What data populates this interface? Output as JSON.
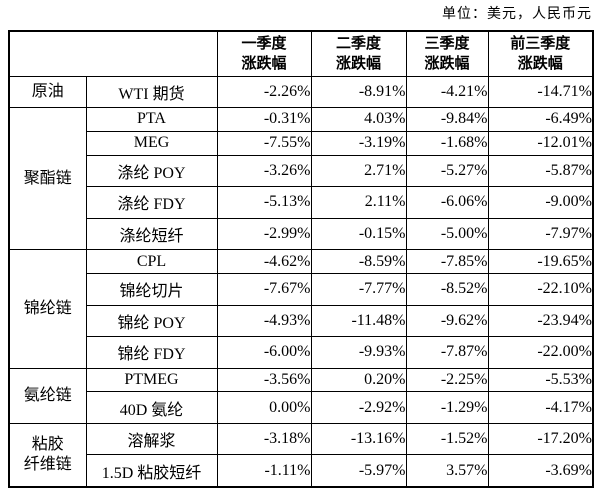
{
  "chart_data": {
    "type": "table",
    "unit_note": "单位：美元，人民币元",
    "column_headers": [
      {
        "line1": "一季度",
        "line2": "涨跌幅"
      },
      {
        "line1": "二季度",
        "line2": "涨跌幅"
      },
      {
        "line1": "三季度",
        "line2": "涨跌幅"
      },
      {
        "line1": "前三季度",
        "line2": "涨跌幅"
      }
    ],
    "groups": [
      {
        "name": "原油",
        "name_lines": [
          "原油"
        ],
        "rows": [
          {
            "product": "WTI 期货",
            "values": [
              "-2.26%",
              "-8.91%",
              "-4.21%",
              "-14.71%"
            ]
          }
        ]
      },
      {
        "name": "聚酯链",
        "name_lines": [
          "聚酯链"
        ],
        "rows": [
          {
            "product": "PTA",
            "values": [
              "-0.31%",
              "4.03%",
              "-9.84%",
              "-6.49%"
            ]
          },
          {
            "product": "MEG",
            "values": [
              "-7.55%",
              "-3.19%",
              "-1.68%",
              "-12.01%"
            ]
          },
          {
            "product": "涤纶 POY",
            "values": [
              "-3.26%",
              "2.71%",
              "-5.27%",
              "-5.87%"
            ]
          },
          {
            "product": "涤纶 FDY",
            "values": [
              "-5.13%",
              "2.11%",
              "-6.06%",
              "-9.00%"
            ]
          },
          {
            "product": "涤纶短纤",
            "values": [
              "-2.99%",
              "-0.15%",
              "-5.00%",
              "-7.97%"
            ]
          }
        ]
      },
      {
        "name": "锦纶链",
        "name_lines": [
          "锦纶链"
        ],
        "rows": [
          {
            "product": "CPL",
            "values": [
              "-4.62%",
              "-8.59%",
              "-7.85%",
              "-19.65%"
            ]
          },
          {
            "product": "锦纶切片",
            "values": [
              "-7.67%",
              "-7.77%",
              "-8.52%",
              "-22.10%"
            ]
          },
          {
            "product": "锦纶 POY",
            "values": [
              "-4.93%",
              "-11.48%",
              "-9.62%",
              "-23.94%"
            ]
          },
          {
            "product": "锦纶 FDY",
            "values": [
              "-6.00%",
              "-9.93%",
              "-7.87%",
              "-22.00%"
            ]
          }
        ]
      },
      {
        "name": "氨纶链",
        "name_lines": [
          "氨纶链"
        ],
        "rows": [
          {
            "product": "PTMEG",
            "values": [
              "-3.56%",
              "0.20%",
              "-2.25%",
              "-5.53%"
            ]
          },
          {
            "product": "40D 氨纶",
            "values": [
              "0.00%",
              "-2.92%",
              "-1.29%",
              "-4.17%"
            ]
          }
        ]
      },
      {
        "name": "粘胶纤维链",
        "name_lines": [
          "粘胶",
          "纤维链"
        ],
        "rows": [
          {
            "product": "溶解浆",
            "values": [
              "-3.18%",
              "-13.16%",
              "-1.52%",
              "-17.20%"
            ]
          },
          {
            "product": "1.5D 粘胶短纤",
            "values": [
              "-1.11%",
              "-5.97%",
              "3.57%",
              "-3.69%"
            ]
          }
        ]
      }
    ]
  }
}
